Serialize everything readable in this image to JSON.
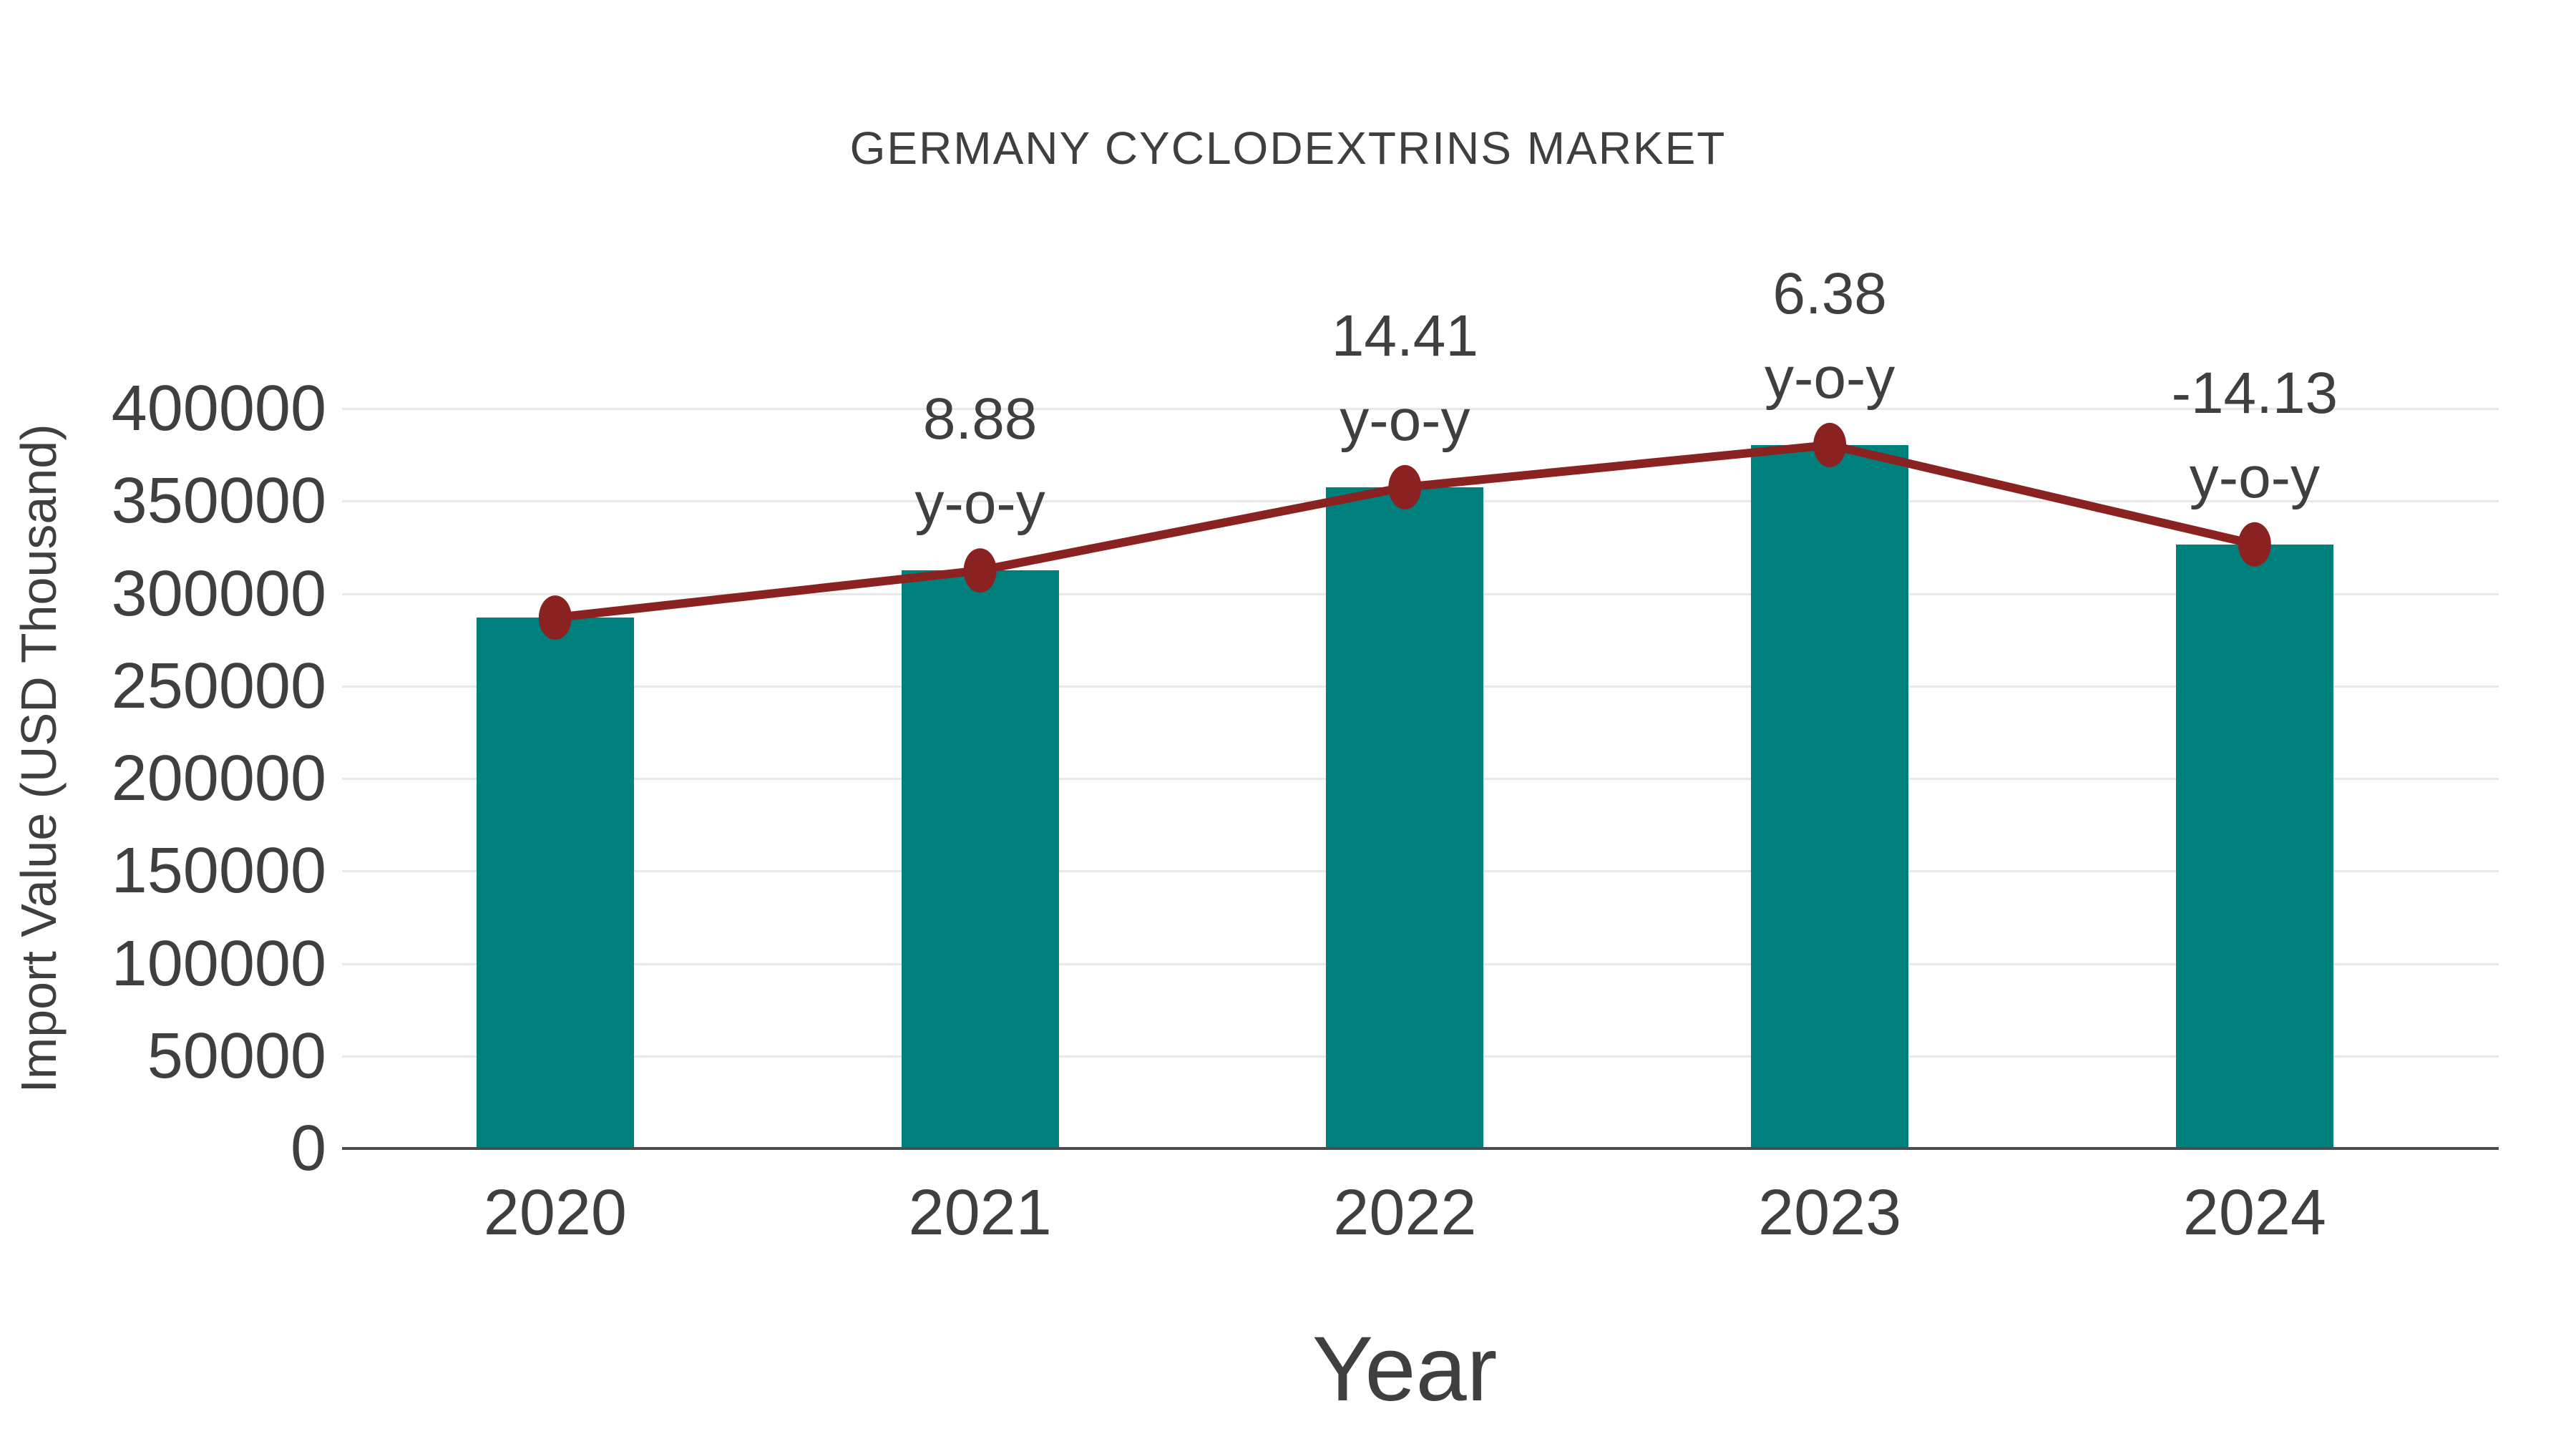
{
  "chart_data": {
    "type": "bar",
    "title": "GERMANY CYCLODEXTRINS MARKET",
    "xlabel": "Year",
    "ylabel": "Import Value (USD Thousand)",
    "categories": [
      "2020",
      "2021",
      "2022",
      "2023",
      "2024"
    ],
    "series": [
      {
        "name": "Import Value (USD Thousand)",
        "kind": "bar",
        "color": "#00807D",
        "values": [
          287000,
          312500,
          357500,
          380300,
          326600
        ]
      },
      {
        "name": "y-o-y growth",
        "kind": "line",
        "color": "#8B2222",
        "marker": "ellipse",
        "plotted_at_bar_tops": true,
        "yoy_percent": [
          null,
          8.88,
          14.41,
          6.38,
          -14.13
        ],
        "point_labels": [
          "",
          "8.88",
          "14.41",
          "6.38",
          "-14.13"
        ],
        "point_label_suffix": "y-o-y"
      }
    ],
    "ylim": [
      0,
      400000
    ],
    "yticks": [
      0,
      50000,
      100000,
      150000,
      200000,
      250000,
      300000,
      350000,
      400000
    ],
    "grid": true,
    "legend_position": "none",
    "styles": {
      "text_color": "#3F3F3F",
      "grid_color": "#E8E8E8",
      "axis_color": "#4D4D4D",
      "background": "#FFFFFF"
    }
  }
}
